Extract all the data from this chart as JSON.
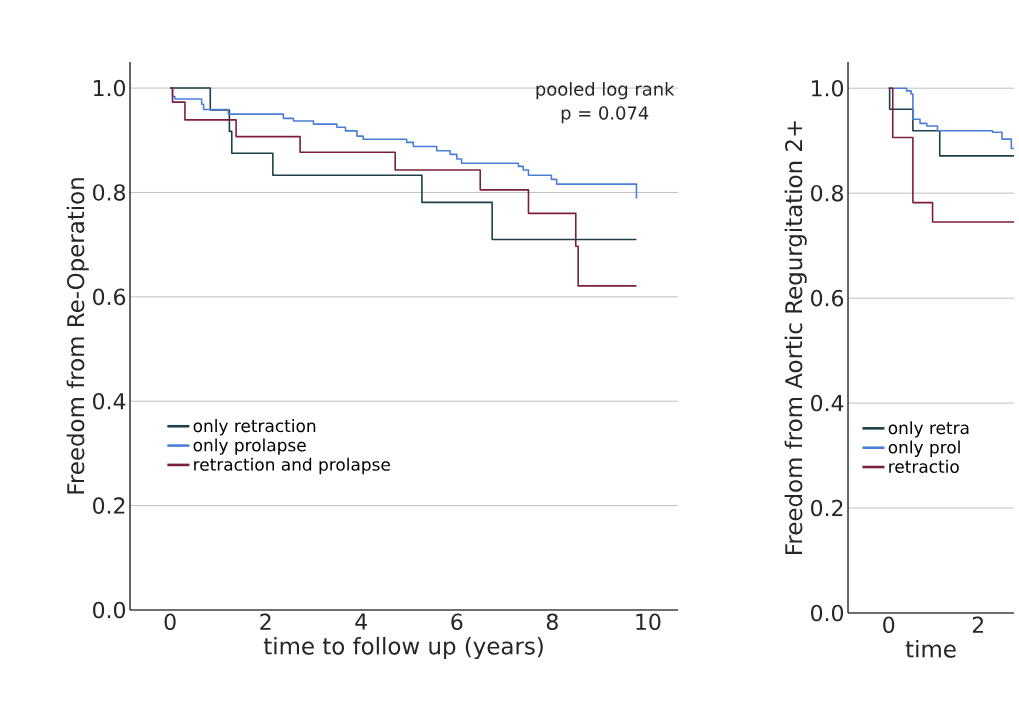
{
  "chart_data": [
    {
      "type": "step",
      "xlabel": "time to follow up (years)",
      "ylabel": "Freedom from Re-Operation",
      "annotations": [
        "pooled log rank",
        "p = 0.074"
      ],
      "xlim": [
        -0.84,
        10.63
      ],
      "ylim": [
        0,
        1.05
      ],
      "xticks": [
        0,
        2,
        4,
        6,
        8,
        10
      ],
      "yticks": [
        {
          "value": 0,
          "label": "0.0"
        },
        {
          "value": 0.2,
          "label": "0.2"
        },
        {
          "value": 0.4,
          "label": "0.4"
        },
        {
          "value": 0.6,
          "label": "0.6"
        },
        {
          "value": 0.8,
          "label": "0.8"
        },
        {
          "value": 1,
          "label": "1.0"
        }
      ],
      "grid": "y",
      "legend": "left",
      "marker": "none",
      "series": [
        {
          "name": "only retraction",
          "color": "#1d3f4a",
          "x": [
            0,
            0.84,
            1.24,
            1.29,
            2.15,
            5.27,
            6.74,
            9.76
          ],
          "values": [
            1.0,
            0.958,
            0.917,
            0.875,
            0.833,
            0.781,
            0.71,
            0.71
          ]
        },
        {
          "name": "only prolapse",
          "color": "#4a7fd4",
          "x": [
            0,
            0.05,
            0.1,
            0.66,
            0.7,
            1.22,
            2.37,
            2.58,
            3.0,
            3.49,
            3.67,
            3.91,
            4.04,
            4.95,
            5.09,
            5.58,
            5.86,
            6.0,
            6.1,
            7.29,
            7.39,
            7.5,
            7.98,
            8.09,
            9.76,
            9.78
          ],
          "values": [
            1.0,
            0.984,
            0.979,
            0.969,
            0.959,
            0.95,
            0.942,
            0.937,
            0.931,
            0.925,
            0.918,
            0.908,
            0.902,
            0.896,
            0.888,
            0.88,
            0.873,
            0.864,
            0.856,
            0.85,
            0.843,
            0.833,
            0.825,
            0.816,
            0.79,
            0.79
          ]
        },
        {
          "name": "retraction and prolapse",
          "color": "#7a1f3d",
          "x": [
            0,
            0.05,
            0.31,
            1.38,
            2.72,
            4.71,
            6.49,
            7.5,
            8.49,
            8.54,
            9.76
          ],
          "values": [
            1.0,
            0.973,
            0.939,
            0.907,
            0.877,
            0.843,
            0.805,
            0.76,
            0.697,
            0.621,
            0.621
          ]
        }
      ]
    },
    {
      "type": "step",
      "xlabel": "time",
      "ylabel": "Freedom from Aortic Regurgitation 2+",
      "xlim": [
        -0.91,
        2.8
      ],
      "ylim": [
        0,
        1.05
      ],
      "xticks": [
        0,
        2
      ],
      "yticks": [
        {
          "value": 0,
          "label": "0.0"
        },
        {
          "value": 0.2,
          "label": "0.2"
        },
        {
          "value": 0.4,
          "label": "0.4"
        },
        {
          "value": 0.6,
          "label": "0.6"
        },
        {
          "value": 0.8,
          "label": "0.8"
        },
        {
          "value": 1,
          "label": "1.0"
        }
      ],
      "grid": "y",
      "legend": "left",
      "marker": "none",
      "series": [
        {
          "name": "only retra",
          "color": "#1d3f4a",
          "x": [
            0,
            0.02,
            0.54,
            1.14,
            2.8
          ],
          "values": [
            1.0,
            0.96,
            0.919,
            0.871,
            0.871
          ]
        },
        {
          "name": "only prol",
          "color": "#4a7fd4",
          "x": [
            0,
            0.4,
            0.5,
            0.54,
            0.7,
            0.85,
            1.09,
            2.32,
            2.53,
            2.74,
            2.8
          ],
          "values": [
            1.0,
            0.995,
            0.989,
            0.941,
            0.933,
            0.928,
            0.919,
            0.916,
            0.903,
            0.885,
            0.885
          ]
        },
        {
          "name": "retractio",
          "color": "#7a1f3d",
          "x": [
            0,
            0.09,
            0.54,
            0.98,
            2.8
          ],
          "values": [
            1.0,
            0.906,
            0.782,
            0.745,
            0.745
          ]
        }
      ]
    }
  ]
}
